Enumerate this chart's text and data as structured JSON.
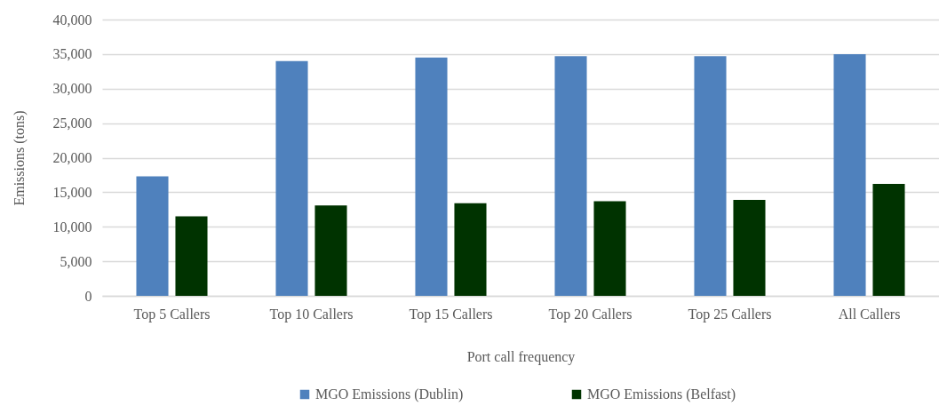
{
  "chart_data": {
    "type": "bar",
    "xlabel": "Port call frequency",
    "ylabel": "Emissions (tons)",
    "categories": [
      "Top 5 Callers",
      "Top 10 Callers",
      "Top 15 Callers",
      "Top 20 Callers",
      "Top 25 Callers",
      "All Callers"
    ],
    "series": [
      {
        "name": "MGO Emissions (Dublin)",
        "color": "#4f81bd",
        "values": [
          17300,
          34000,
          34500,
          34700,
          34700,
          35000
        ]
      },
      {
        "name": "MGO Emissions (Belfast)",
        "color": "#003300",
        "values": [
          11500,
          13100,
          13400,
          13700,
          13900,
          16200
        ]
      }
    ],
    "ylim": [
      0,
      40000
    ],
    "yticks": [
      0,
      {
        "value": 5000,
        "label": "5,000"
      },
      {
        "value": 10000,
        "label": "10,000"
      },
      {
        "value": 15000,
        "label": "15,000"
      },
      {
        "value": 20000,
        "label": "20,000"
      },
      {
        "value": 25000,
        "label": "25,000"
      },
      {
        "value": 30000,
        "label": "30,000"
      },
      {
        "value": 35000,
        "label": "35,000"
      },
      {
        "value": 40000,
        "label": "40,000"
      }
    ],
    "grid": "y",
    "legend": "bottom"
  }
}
